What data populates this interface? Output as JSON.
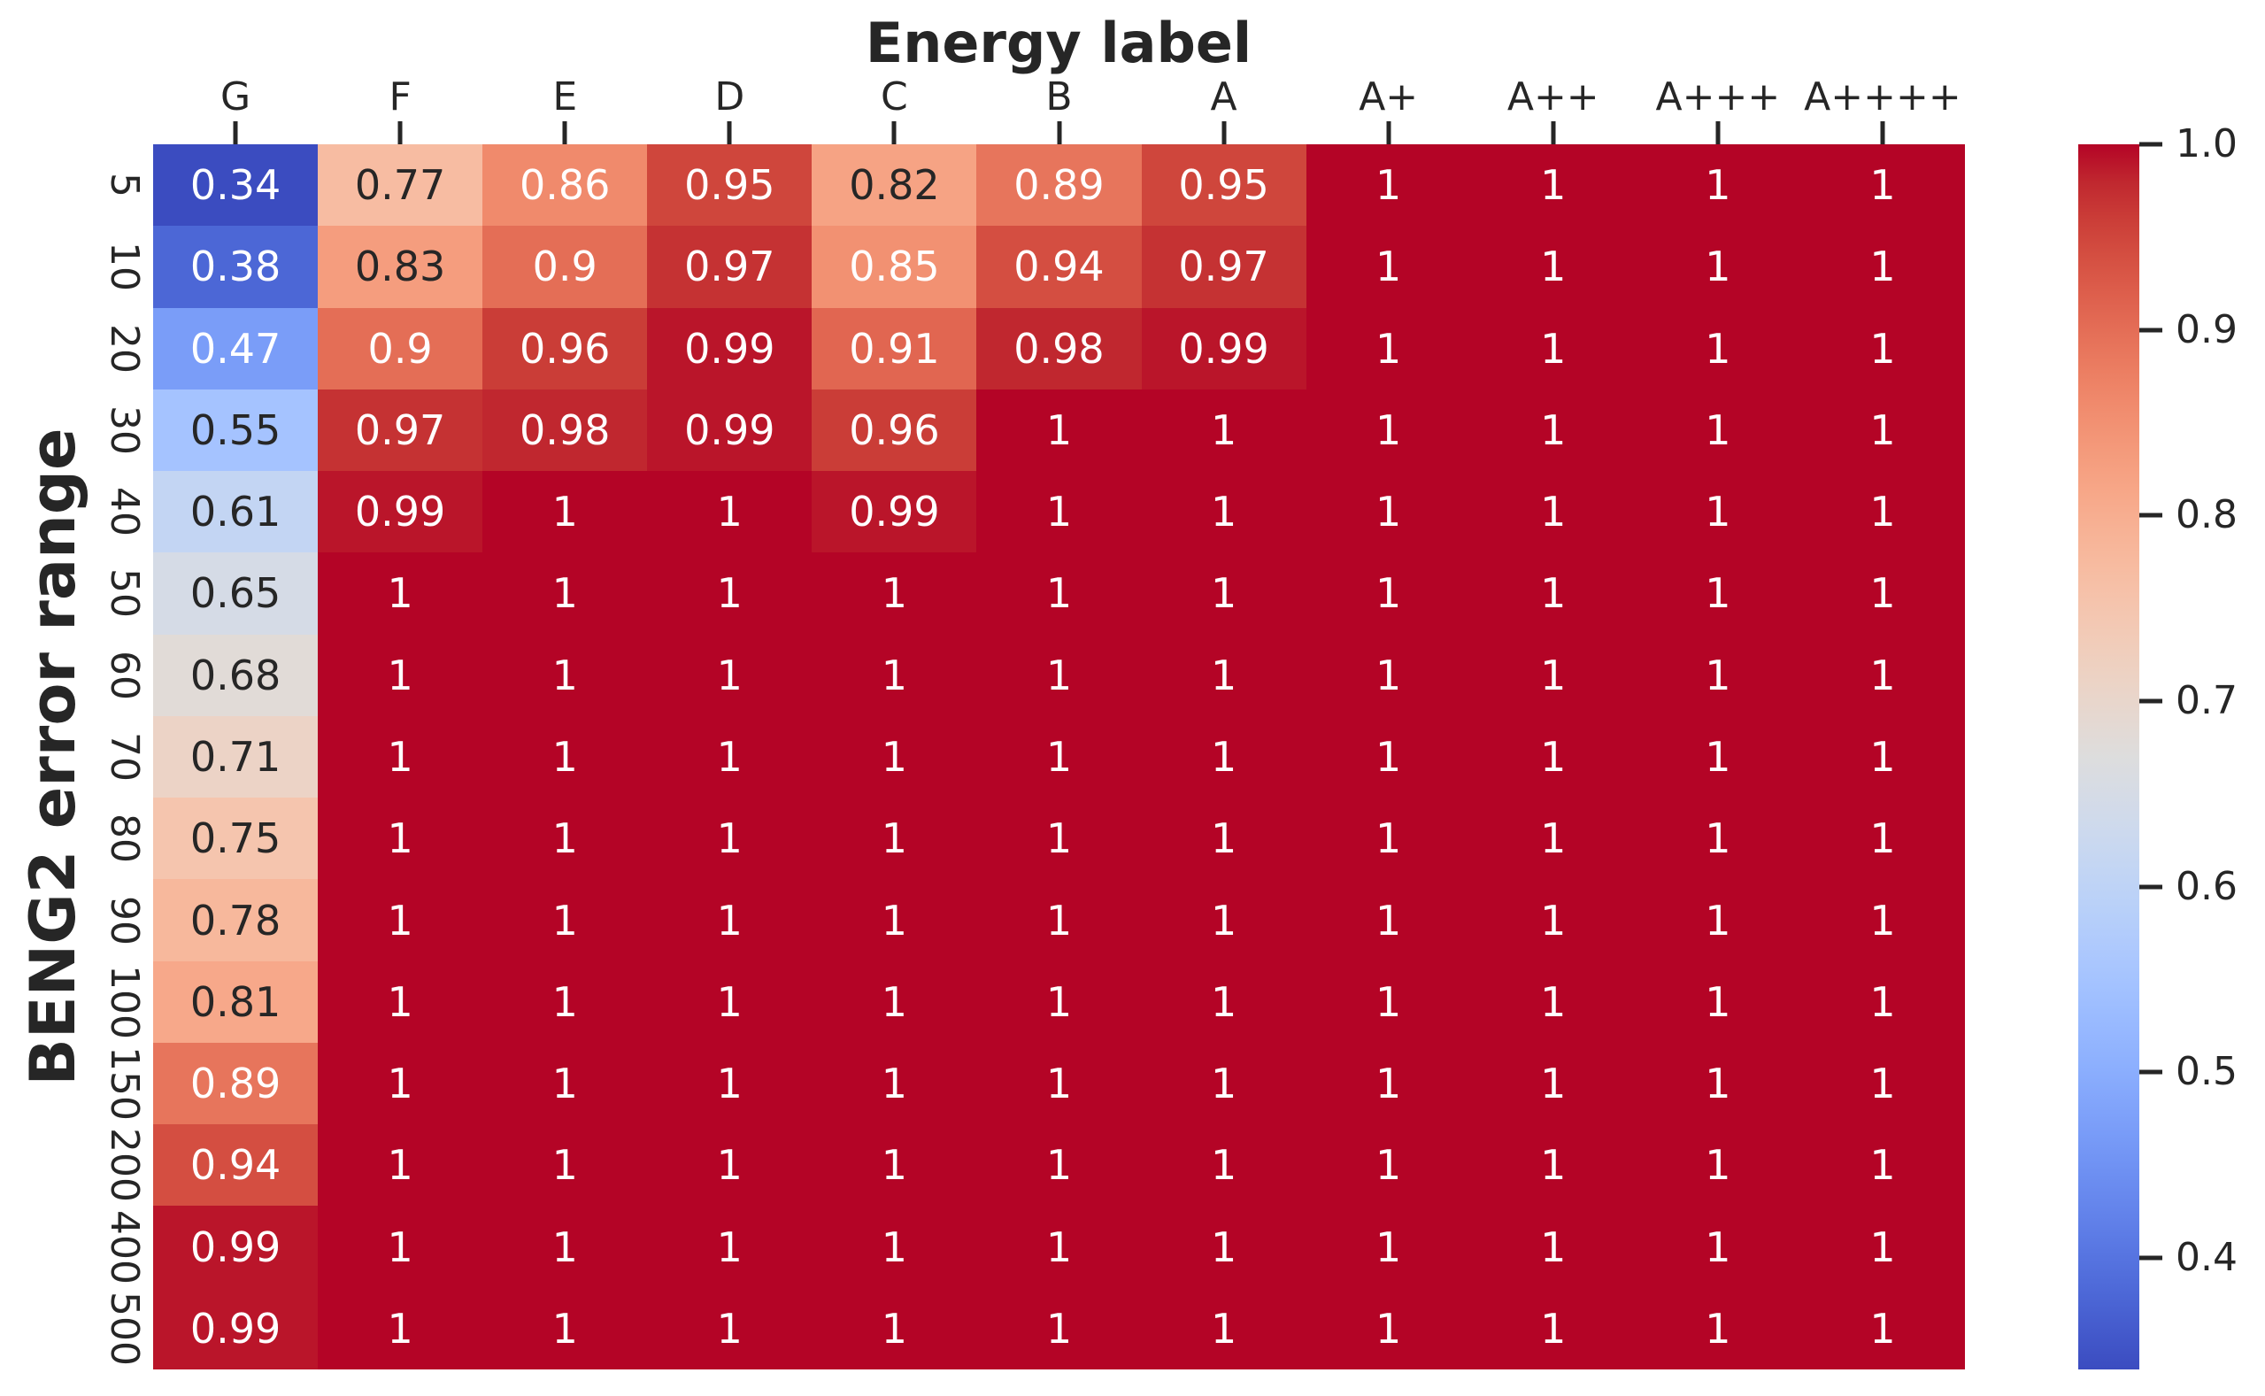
{
  "chart_data": {
    "type": "heatmap",
    "title": "Energy label",
    "ylabel": "BENG2 error range",
    "x_categories": [
      "G",
      "F",
      "E",
      "D",
      "C",
      "B",
      "A",
      "A+",
      "A++",
      "A+++",
      "A++++"
    ],
    "y_categories": [
      "5",
      "10",
      "20",
      "30",
      "40",
      "50",
      "60",
      "70",
      "80",
      "90",
      "100",
      "150",
      "200",
      "400",
      "500"
    ],
    "values": [
      [
        0.34,
        0.77,
        0.86,
        0.95,
        0.82,
        0.89,
        0.95,
        1,
        1,
        1,
        1
      ],
      [
        0.38,
        0.83,
        0.9,
        0.97,
        0.85,
        0.94,
        0.97,
        1,
        1,
        1,
        1
      ],
      [
        0.47,
        0.9,
        0.96,
        0.99,
        0.91,
        0.98,
        0.99,
        1,
        1,
        1,
        1
      ],
      [
        0.55,
        0.97,
        0.98,
        0.99,
        0.96,
        1,
        1,
        1,
        1,
        1,
        1
      ],
      [
        0.61,
        0.99,
        1,
        1,
        0.99,
        1,
        1,
        1,
        1,
        1,
        1
      ],
      [
        0.65,
        1,
        1,
        1,
        1,
        1,
        1,
        1,
        1,
        1,
        1
      ],
      [
        0.68,
        1,
        1,
        1,
        1,
        1,
        1,
        1,
        1,
        1,
        1
      ],
      [
        0.71,
        1,
        1,
        1,
        1,
        1,
        1,
        1,
        1,
        1,
        1
      ],
      [
        0.75,
        1,
        1,
        1,
        1,
        1,
        1,
        1,
        1,
        1,
        1
      ],
      [
        0.78,
        1,
        1,
        1,
        1,
        1,
        1,
        1,
        1,
        1,
        1
      ],
      [
        0.81,
        1,
        1,
        1,
        1,
        1,
        1,
        1,
        1,
        1,
        1
      ],
      [
        0.89,
        1,
        1,
        1,
        1,
        1,
        1,
        1,
        1,
        1,
        1
      ],
      [
        0.94,
        1,
        1,
        1,
        1,
        1,
        1,
        1,
        1,
        1,
        1
      ],
      [
        0.99,
        1,
        1,
        1,
        1,
        1,
        1,
        1,
        1,
        1,
        1
      ],
      [
        0.99,
        1,
        1,
        1,
        1,
        1,
        1,
        1,
        1,
        1,
        1
      ]
    ],
    "vmin": 0.34,
    "vmax": 1.0,
    "colormap": "coolwarm",
    "colormap_anchors_rgb": [
      [
        59,
        76,
        192
      ],
      [
        68,
        90,
        204
      ],
      [
        77,
        104,
        215
      ],
      [
        87,
        117,
        225
      ],
      [
        98,
        130,
        234
      ],
      [
        108,
        142,
        241
      ],
      [
        119,
        154,
        247
      ],
      [
        130,
        165,
        251
      ],
      [
        141,
        176,
        254
      ],
      [
        152,
        185,
        255
      ],
      [
        163,
        194,
        255
      ],
      [
        174,
        201,
        253
      ],
      [
        184,
        208,
        249
      ],
      [
        194,
        213,
        244
      ],
      [
        204,
        217,
        238
      ],
      [
        213,
        219,
        230
      ],
      [
        221,
        221,
        221
      ],
      [
        229,
        216,
        209
      ],
      [
        236,
        211,
        197
      ],
      [
        241,
        204,
        185
      ],
      [
        245,
        196,
        173
      ],
      [
        247,
        187,
        160
      ],
      [
        247,
        177,
        148
      ],
      [
        247,
        166,
        135
      ],
      [
        244,
        154,
        123
      ],
      [
        241,
        141,
        111
      ],
      [
        236,
        127,
        99
      ],
      [
        229,
        112,
        88
      ],
      [
        222,
        96,
        77
      ],
      [
        213,
        80,
        66
      ],
      [
        203,
        62,
        56
      ],
      [
        192,
        40,
        47
      ],
      [
        180,
        4,
        38
      ]
    ],
    "colorbar": {
      "position": "right",
      "ticks": [
        "1.0",
        "0.9",
        "0.8",
        "0.7",
        "0.6",
        "0.5",
        "0.4"
      ]
    },
    "annotation_colors": {
      "dark": "#262626",
      "light": "#ffffff"
    },
    "grid": "off",
    "axis_ranges": {
      "x": "categorical",
      "y": "categorical"
    }
  }
}
